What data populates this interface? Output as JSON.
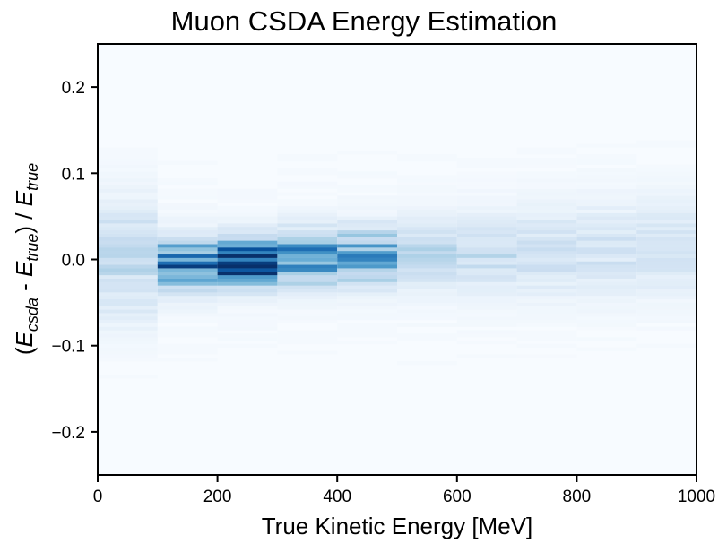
{
  "chart_data": {
    "type": "heatmap",
    "title": "Muon CSDA Energy Estimation",
    "xlabel": "True Kinetic Energy [MeV]",
    "ylabel": {
      "open": "(",
      "e1": "E",
      "sub1": "csda",
      "mid": " - ",
      "e2": "E",
      "sub2": "true",
      "close": ") / ",
      "e3": "E",
      "sub3": "true"
    },
    "xlim": [
      0,
      1000
    ],
    "ylim": [
      -0.25,
      0.25
    ],
    "x_ticks": [
      {
        "value": 0,
        "label": "0"
      },
      {
        "value": 200,
        "label": "200"
      },
      {
        "value": 400,
        "label": "400"
      },
      {
        "value": 600,
        "label": "600"
      },
      {
        "value": 800,
        "label": "800"
      },
      {
        "value": 1000,
        "label": "1000"
      }
    ],
    "y_ticks": [
      {
        "value": 0.2,
        "label": "0.2"
      },
      {
        "value": 0.1,
        "label": "0.1"
      },
      {
        "value": 0.0,
        "label": "0.0"
      },
      {
        "value": -0.1,
        "label": "−0.1"
      },
      {
        "value": -0.2,
        "label": "−0.2"
      }
    ],
    "colormap": [
      "#f7fbff",
      "#deebf7",
      "#c6dbef",
      "#9ecae1",
      "#6baed6",
      "#4292c6",
      "#2171b5",
      "#08519c",
      "#08306b"
    ],
    "grid": false,
    "bins": [
      {
        "x0": 0,
        "x1": 100,
        "y_center": 0.0,
        "y_width": 0.045,
        "peak": 0.22
      },
      {
        "x0": 100,
        "x1": 200,
        "y_center": -0.005,
        "y_width": 0.02,
        "peak": 0.72
      },
      {
        "x0": 200,
        "x1": 300,
        "y_center": -0.002,
        "y_width": 0.018,
        "peak": 0.95
      },
      {
        "x0": 300,
        "x1": 400,
        "y_center": 0.002,
        "y_width": 0.02,
        "peak": 0.68
      },
      {
        "x0": 400,
        "x1": 500,
        "y_center": 0.004,
        "y_width": 0.022,
        "peak": 0.48
      },
      {
        "x0": 500,
        "x1": 600,
        "y_center": 0.006,
        "y_width": 0.026,
        "peak": 0.22
      },
      {
        "x0": 600,
        "x1": 700,
        "y_center": 0.008,
        "y_width": 0.03,
        "peak": 0.18
      },
      {
        "x0": 700,
        "x1": 800,
        "y_center": 0.01,
        "y_width": 0.032,
        "peak": 0.17
      },
      {
        "x0": 800,
        "x1": 900,
        "y_center": 0.012,
        "y_width": 0.034,
        "peak": 0.15
      },
      {
        "x0": 900,
        "x1": 1000,
        "y_center": 0.015,
        "y_width": 0.035,
        "peak": 0.15
      }
    ]
  }
}
